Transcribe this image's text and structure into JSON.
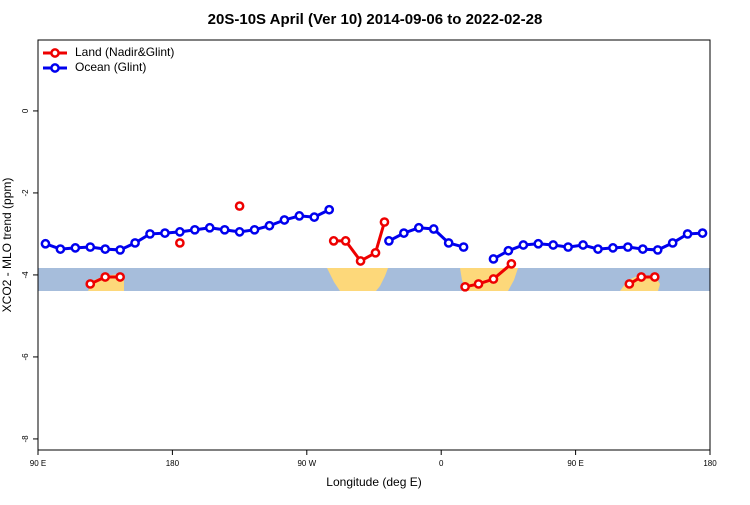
{
  "chart_data": {
    "type": "line",
    "title": "20S-10S April (Ver 10)   2014-09-06 to 2022-02-28",
    "xlabel": "Longitude (deg E)",
    "ylabel": "XCO2 - MLO trend (ppm)",
    "xlim": [
      90,
      540
    ],
    "ylim": [
      -8.27,
      1.73
    ],
    "xticks": [
      {
        "value": 90,
        "label": "90 E"
      },
      180,
      {
        "value": 270,
        "label": "90 W"
      },
      {
        "value": 360,
        "label": "0"
      },
      {
        "value": 450,
        "label": "90 E"
      },
      {
        "value": 540,
        "label": "180"
      }
    ],
    "yticks": [
      0,
      -2,
      -4,
      -6,
      -8
    ],
    "legend": "top-left",
    "series": [
      {
        "name": "Land (Nadir&Glint)",
        "color": "#ee0000",
        "x": [
          125,
          135,
          145,
          165,
          185,
          205,
          225,
          255,
          288,
          296,
          306,
          316,
          322,
          350,
          376,
          385,
          395,
          407,
          450,
          486,
          494,
          503
        ],
        "values": [
          -4.22,
          -4.05,
          -4.05,
          null,
          -3.22,
          null,
          -2.32,
          null,
          -3.17,
          -3.17,
          -3.66,
          -3.46,
          -2.71,
          null,
          -4.29,
          -4.22,
          -4.1,
          -3.73,
          null,
          -4.22,
          -4.05,
          -4.05
        ]
      },
      {
        "name": "Ocean (Glint)",
        "color": "#0000ee",
        "x": [
          95,
          105,
          115,
          125,
          135,
          145,
          155,
          165,
          175,
          185,
          195,
          205,
          215,
          225,
          235,
          245,
          255,
          265,
          275,
          285,
          305,
          325,
          335,
          345,
          355,
          365,
          375,
          385,
          395,
          405,
          415,
          425,
          435,
          445,
          455,
          465,
          475,
          485,
          495,
          505,
          515,
          525,
          535
        ],
        "values": [
          -3.24,
          -3.37,
          -3.34,
          -3.32,
          -3.37,
          -3.39,
          -3.22,
          -3.0,
          -2.98,
          -2.95,
          -2.9,
          -2.85,
          -2.9,
          -2.95,
          -2.9,
          -2.8,
          -2.66,
          -2.56,
          -2.59,
          -2.41,
          null,
          -3.17,
          -2.98,
          -2.85,
          -2.88,
          -3.22,
          -3.32,
          null,
          -3.61,
          -3.41,
          -3.27,
          -3.24,
          -3.27,
          -3.32,
          -3.27,
          -3.37,
          -3.34,
          -3.32,
          -3.37,
          -3.39,
          -3.22,
          -3.0,
          -2.98
        ]
      }
    ]
  }
}
